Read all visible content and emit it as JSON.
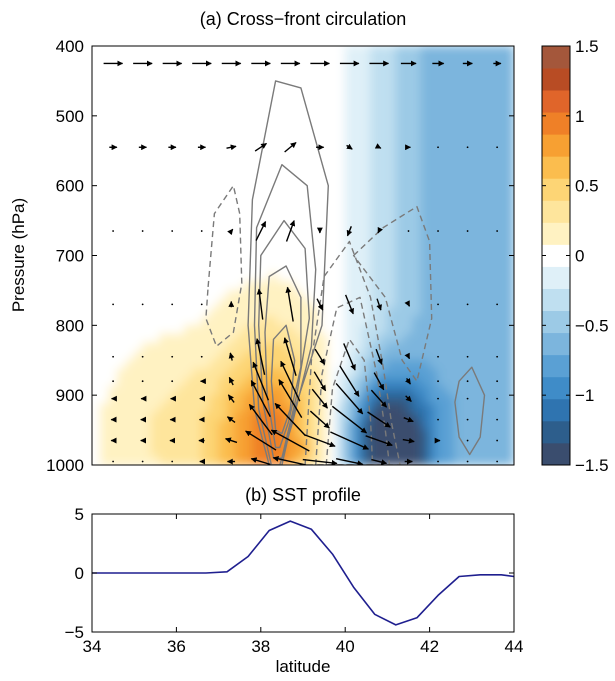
{
  "chart_data": [
    {
      "type": "heatmap",
      "panel": "a",
      "title": "(a) Cross−front circulation",
      "ylabel": "Pressure (hPa)",
      "xlabel": "",
      "xlim": [
        34,
        44
      ],
      "ylim": [
        1000,
        400
      ],
      "y_ticks": [
        400,
        500,
        600,
        700,
        800,
        900,
        1000
      ],
      "y_tick_labels": [
        "400",
        "500",
        "600",
        "700",
        "800",
        "900",
        "1000"
      ],
      "colorbar": {
        "range": [
          -1.5,
          1.5
        ],
        "ticks": [
          1.5,
          1,
          0.5,
          0,
          -0.5,
          -1,
          -1.5
        ],
        "tick_labels": [
          "1.5",
          "1",
          "0.5",
          "0",
          "−0.5",
          "−1",
          "−1.5"
        ],
        "palette": [
          "#3a4d6e",
          "#2d5e8c",
          "#2f74b0",
          "#3f8cc8",
          "#5aa0d4",
          "#7cb5dd",
          "#9ccae6",
          "#bfdff0",
          "#dff0f8",
          "#ffffff",
          "#fff2c2",
          "#fee59c",
          "#fdd575",
          "#fbbd4e",
          "#f7a032",
          "#ef8027",
          "#e0652a",
          "#b84c24",
          "#a4573b"
        ]
      },
      "warm_anomaly": {
        "lat_center": 38.3,
        "p_center": 975,
        "peak": 0.9
      },
      "cold_anomaly": {
        "lat_center": 41.0,
        "p_center": 975,
        "peak": -1.5
      },
      "upper_cold_region": {
        "lat_start": 40.3,
        "p_top": 400,
        "peak": -0.7
      },
      "solid_contours": [
        {
          "kind": "positive",
          "points": [
            [
              38.2,
              1000
            ],
            [
              37.85,
              920
            ],
            [
              37.7,
              800
            ],
            [
              37.8,
              620
            ],
            [
              38.35,
              450
            ],
            [
              38.95,
              460
            ],
            [
              39.6,
              600
            ],
            [
              39.45,
              800
            ],
            [
              38.8,
              920
            ],
            [
              38.5,
              1000
            ]
          ]
        },
        {
          "kind": "positive",
          "points": [
            [
              38.25,
              1000
            ],
            [
              37.95,
              920
            ],
            [
              37.85,
              800
            ],
            [
              37.9,
              660
            ],
            [
              38.5,
              570
            ],
            [
              39.1,
              600
            ],
            [
              39.3,
              720
            ],
            [
              39.2,
              830
            ],
            [
              38.75,
              940
            ],
            [
              38.45,
              1000
            ]
          ]
        },
        {
          "kind": "positive",
          "points": [
            [
              38.3,
              990
            ],
            [
              38.05,
              910
            ],
            [
              37.95,
              800
            ],
            [
              38.0,
              700
            ],
            [
              38.55,
              650
            ],
            [
              39.05,
              690
            ],
            [
              39.15,
              790
            ],
            [
              38.85,
              900
            ],
            [
              38.5,
              990
            ]
          ]
        },
        {
          "kind": "positive",
          "points": [
            [
              38.35,
              975
            ],
            [
              38.15,
              900
            ],
            [
              38.1,
              810
            ],
            [
              38.2,
              730
            ],
            [
              38.6,
              715
            ],
            [
              38.95,
              760
            ],
            [
              38.95,
              860
            ],
            [
              38.65,
              940
            ],
            [
              38.45,
              975
            ]
          ]
        },
        {
          "kind": "positive",
          "points": [
            [
              38.35,
              950
            ],
            [
              38.25,
              880
            ],
            [
              38.3,
              820
            ],
            [
              38.6,
              800
            ],
            [
              38.8,
              850
            ],
            [
              38.7,
              920
            ],
            [
              38.5,
              955
            ]
          ]
        },
        {
          "kind": "positive",
          "points": [
            [
              42.7,
              880
            ],
            [
              43.0,
              860
            ],
            [
              43.3,
              900
            ],
            [
              43.2,
              960
            ],
            [
              42.95,
              985
            ],
            [
              42.7,
              960
            ],
            [
              42.6,
              910
            ]
          ]
        }
      ],
      "dashed_contours": [
        {
          "kind": "negative",
          "points": [
            [
              36.75,
              745
            ],
            [
              36.9,
              640
            ],
            [
              37.35,
              600
            ],
            [
              37.5,
              640
            ],
            [
              37.55,
              740
            ],
            [
              37.35,
              810
            ],
            [
              36.95,
              830
            ],
            [
              36.7,
              790
            ]
          ]
        },
        {
          "kind": "negative",
          "points": [
            [
              39.05,
              1000
            ],
            [
              39.2,
              850
            ],
            [
              39.5,
              730
            ],
            [
              40.1,
              680
            ],
            [
              40.6,
              760
            ],
            [
              40.9,
              860
            ],
            [
              41.1,
              940
            ],
            [
              41.3,
              1000
            ]
          ]
        },
        {
          "kind": "negative",
          "points": [
            [
              39.3,
              1000
            ],
            [
              39.45,
              870
            ],
            [
              39.8,
              775
            ],
            [
              40.35,
              760
            ],
            [
              40.75,
              870
            ],
            [
              40.95,
              950
            ],
            [
              41.05,
              1000
            ]
          ]
        },
        {
          "kind": "negative",
          "points": [
            [
              39.55,
              1000
            ],
            [
              39.7,
              890
            ],
            [
              40.1,
              820
            ],
            [
              40.45,
              850
            ],
            [
              40.6,
              935
            ],
            [
              40.65,
              1000
            ]
          ]
        },
        {
          "kind": "negative",
          "points": [
            [
              40.2,
              700
            ],
            [
              40.9,
              660
            ],
            [
              41.7,
              630
            ],
            [
              42.0,
              680
            ],
            [
              42.05,
              790
            ],
            [
              41.7,
              880
            ],
            [
              41.35,
              850
            ],
            [
              40.95,
              760
            ]
          ]
        }
      ],
      "wind_arrows": {
        "lats": [
          34.5,
          35.2,
          35.9,
          36.6,
          37.3,
          38.0,
          38.7,
          39.4,
          40.1,
          40.8,
          41.5,
          42.2,
          42.9,
          43.6
        ],
        "levels": [
          425,
          545,
          665,
          770,
          845,
          880,
          905,
          935,
          965,
          995
        ],
        "v": [
          [
            0.5,
            0.5,
            0.5,
            0.5,
            0.5,
            0.5,
            0.5,
            0.5,
            0.5,
            0.5,
            0.4,
            0.3,
            0.25,
            0.2
          ],
          [
            0.2,
            0.2,
            0.2,
            0.2,
            0.25,
            0.3,
            0.3,
            0.2,
            0.15,
            0.1,
            0.1,
            0.05,
            0.05,
            0.05
          ],
          [
            0.05,
            0.05,
            0.05,
            0.05,
            0.08,
            0.25,
            0.2,
            0.0,
            -0.1,
            -0.05,
            0.0,
            0.0,
            0.0,
            0.0
          ],
          [
            0.0,
            0.0,
            0.0,
            0.0,
            0.0,
            -0.1,
            -0.15,
            0.15,
            0.2,
            0.1,
            0.05,
            0.0,
            0.0,
            0.0
          ],
          [
            -0.02,
            -0.02,
            -0.02,
            -0.03,
            -0.05,
            -0.2,
            -0.3,
            0.25,
            0.3,
            0.15,
            0.05,
            0.0,
            0.0,
            0.0
          ],
          [
            -0.05,
            -0.05,
            -0.05,
            -0.06,
            -0.1,
            -0.4,
            -0.5,
            0.3,
            0.5,
            0.25,
            0.1,
            0.0,
            0.0,
            0.0
          ],
          [
            -0.08,
            -0.08,
            -0.08,
            -0.1,
            -0.15,
            -0.5,
            -0.6,
            0.4,
            0.7,
            0.4,
            0.15,
            0.05,
            0.0,
            0.0
          ],
          [
            -0.1,
            -0.1,
            -0.1,
            -0.12,
            -0.2,
            -0.6,
            -0.8,
            0.5,
            0.9,
            0.6,
            0.25,
            0.05,
            0.0,
            0.0
          ],
          [
            -0.1,
            -0.1,
            -0.12,
            -0.15,
            -0.3,
            -0.8,
            -1.0,
            0.8,
            1.0,
            0.7,
            0.3,
            0.1,
            0.0,
            0.0
          ],
          [
            -0.05,
            -0.05,
            -0.05,
            -0.1,
            -0.2,
            -0.5,
            -0.9,
            0.9,
            0.7,
            0.4,
            0.2,
            0.05,
            0.0,
            0.0
          ]
        ],
        "w": [
          [
            0.0,
            0.0,
            0.0,
            0.0,
            0.0,
            0.0,
            0.0,
            0.0,
            0.0,
            0.0,
            0.0,
            0.0,
            0.0,
            0.0
          ],
          [
            0.0,
            0.0,
            0.0,
            0.0,
            0.05,
            0.2,
            0.25,
            0.0,
            -0.1,
            -0.05,
            0.0,
            0.0,
            0.0,
            0.0
          ],
          [
            0.0,
            0.0,
            0.0,
            0.0,
            0.1,
            0.5,
            0.55,
            -0.1,
            -0.25,
            -0.1,
            0.0,
            0.0,
            0.0,
            0.0
          ],
          [
            0.0,
            0.0,
            0.0,
            0.0,
            0.15,
            0.8,
            0.9,
            -0.3,
            -0.5,
            -0.3,
            -0.1,
            0.0,
            0.0,
            0.0
          ],
          [
            0.0,
            0.0,
            0.0,
            0.0,
            0.2,
            0.95,
            1.0,
            -0.4,
            -0.7,
            -0.4,
            -0.1,
            0.0,
            0.0,
            0.0
          ],
          [
            0.0,
            0.0,
            0.0,
            0.0,
            0.2,
            1.0,
            1.05,
            -0.5,
            -0.8,
            -0.45,
            -0.15,
            0.0,
            0.0,
            0.0
          ],
          [
            0.0,
            0.0,
            0.0,
            0.0,
            0.2,
            0.95,
            1.0,
            -0.5,
            -0.8,
            -0.45,
            -0.15,
            0.0,
            0.0,
            0.0
          ],
          [
            0.0,
            0.0,
            0.0,
            0.0,
            0.15,
            0.8,
            0.85,
            -0.45,
            -0.7,
            -0.4,
            -0.1,
            0.0,
            0.0,
            0.0
          ],
          [
            0.0,
            0.0,
            0.0,
            0.0,
            0.1,
            0.5,
            0.55,
            -0.3,
            -0.45,
            -0.25,
            -0.05,
            0.0,
            0.0,
            0.0
          ],
          [
            0.0,
            0.0,
            0.0,
            0.0,
            0.0,
            0.15,
            0.2,
            -0.1,
            -0.15,
            -0.1,
            0.0,
            0.0,
            0.0,
            0.0
          ]
        ]
      }
    },
    {
      "type": "line",
      "panel": "b",
      "title": "(b) SST profile",
      "xlabel": "latitude",
      "ylabel": "",
      "xlim": [
        34,
        44
      ],
      "ylim": [
        -5,
        5
      ],
      "x_ticks": [
        34,
        36,
        38,
        40,
        42,
        44
      ],
      "x_tick_labels": [
        "34",
        "36",
        "38",
        "40",
        "42",
        "44"
      ],
      "y_ticks": [
        5,
        0,
        -5
      ],
      "y_tick_labels": [
        "5",
        "0",
        "−5"
      ],
      "line_color": "#1f1f8f",
      "x": [
        34,
        34.5,
        35,
        35.5,
        36,
        36.5,
        36.7,
        37.2,
        37.7,
        38.2,
        38.7,
        39.2,
        39.7,
        40.2,
        40.7,
        41.2,
        41.7,
        42.2,
        42.7,
        43.2,
        43.7,
        44
      ],
      "y": [
        0,
        0,
        0,
        0,
        0,
        0,
        0,
        0.1,
        1.4,
        3.6,
        4.4,
        3.7,
        1.6,
        -1.2,
        -3.5,
        -4.4,
        -3.8,
        -1.9,
        -0.3,
        -0.15,
        -0.15,
        -0.3
      ]
    }
  ]
}
